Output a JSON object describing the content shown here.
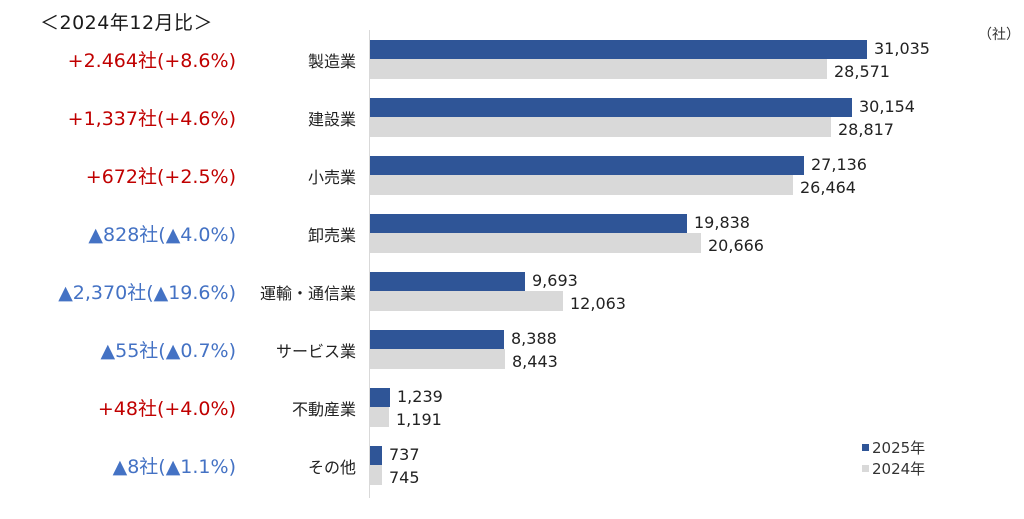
{
  "header": {
    "comparison_label": "＜2024年12月比＞",
    "unit_label": "（社）"
  },
  "legend": {
    "items": [
      {
        "label": "2025年",
        "color": "#2f5597"
      },
      {
        "label": "2024年",
        "color": "#d9d9d9"
      }
    ]
  },
  "colors": {
    "series_2025": "#2f5597",
    "series_2024": "#d9d9d9",
    "increase_text": "#c00000",
    "decrease_text": "#4472c4"
  },
  "rows": [
    {
      "category": "製造業",
      "v2025": "31,035",
      "v2024": "28,571",
      "diff": "+2.464社(+8.6%)",
      "direction": "up"
    },
    {
      "category": "建設業",
      "v2025": "30,154",
      "v2024": "28,817",
      "diff": "+1,337社(+4.6%)",
      "direction": "up"
    },
    {
      "category": "小売業",
      "v2025": "27,136",
      "v2024": "26,464",
      "diff": "+672社(+2.5%)",
      "direction": "up"
    },
    {
      "category": "卸売業",
      "v2025": "19,838",
      "v2024": "20,666",
      "diff": "▲828社(▲4.0%)",
      "direction": "down"
    },
    {
      "category": "運輸・通信業",
      "v2025": "9,693",
      "v2024": "12,063",
      "diff": "▲2,370社(▲19.6%)",
      "direction": "down"
    },
    {
      "category": "サービス業",
      "v2025": "8,388",
      "v2024": "8,443",
      "diff": "▲55社(▲0.7%)",
      "direction": "down"
    },
    {
      "category": "不動産業",
      "v2025": "1,239",
      "v2024": "1,191",
      "diff": "+48社(+4.0%)",
      "direction": "up"
    },
    {
      "category": "その他",
      "v2025": "737",
      "v2024": "745",
      "diff": "▲8社(▲1.1%)",
      "direction": "down"
    }
  ],
  "chart_data": {
    "type": "bar",
    "orientation": "horizontal",
    "title": "＜2024年12月比＞",
    "xlabel": "",
    "ylabel": "",
    "unit": "社",
    "categories": [
      "製造業",
      "建設業",
      "小売業",
      "卸売業",
      "運輸・通信業",
      "サービス業",
      "不動産業",
      "その他"
    ],
    "series": [
      {
        "name": "2025年",
        "color": "#2f5597",
        "values": [
          31035,
          30154,
          27136,
          19838,
          9693,
          8388,
          1239,
          737
        ]
      },
      {
        "name": "2024年",
        "color": "#d9d9d9",
        "values": [
          28571,
          28817,
          26464,
          20666,
          12063,
          8443,
          1191,
          745
        ]
      }
    ],
    "annotations": [
      {
        "category": "製造業",
        "text": "+2.464社(+8.6%)",
        "change": 2464,
        "pct": 8.6
      },
      {
        "category": "建設業",
        "text": "+1,337社(+4.6%)",
        "change": 1337,
        "pct": 4.6
      },
      {
        "category": "小売業",
        "text": "+672社(+2.5%)",
        "change": 672,
        "pct": 2.5
      },
      {
        "category": "卸売業",
        "text": "▲828社(▲4.0%)",
        "change": -828,
        "pct": -4.0
      },
      {
        "category": "運輸・通信業",
        "text": "▲2,370社(▲19.6%)",
        "change": -2370,
        "pct": -19.6
      },
      {
        "category": "サービス業",
        "text": "▲55社(▲0.7%)",
        "change": -55,
        "pct": -0.7
      },
      {
        "category": "不動産業",
        "text": "+48社(+4.0%)",
        "change": 48,
        "pct": 4.0
      },
      {
        "category": "その他",
        "text": "▲8社(▲1.1%)",
        "change": -8,
        "pct": -1.1
      }
    ],
    "grid": false,
    "legend_position": "bottom-right",
    "xlim": [
      0,
      40000
    ]
  }
}
